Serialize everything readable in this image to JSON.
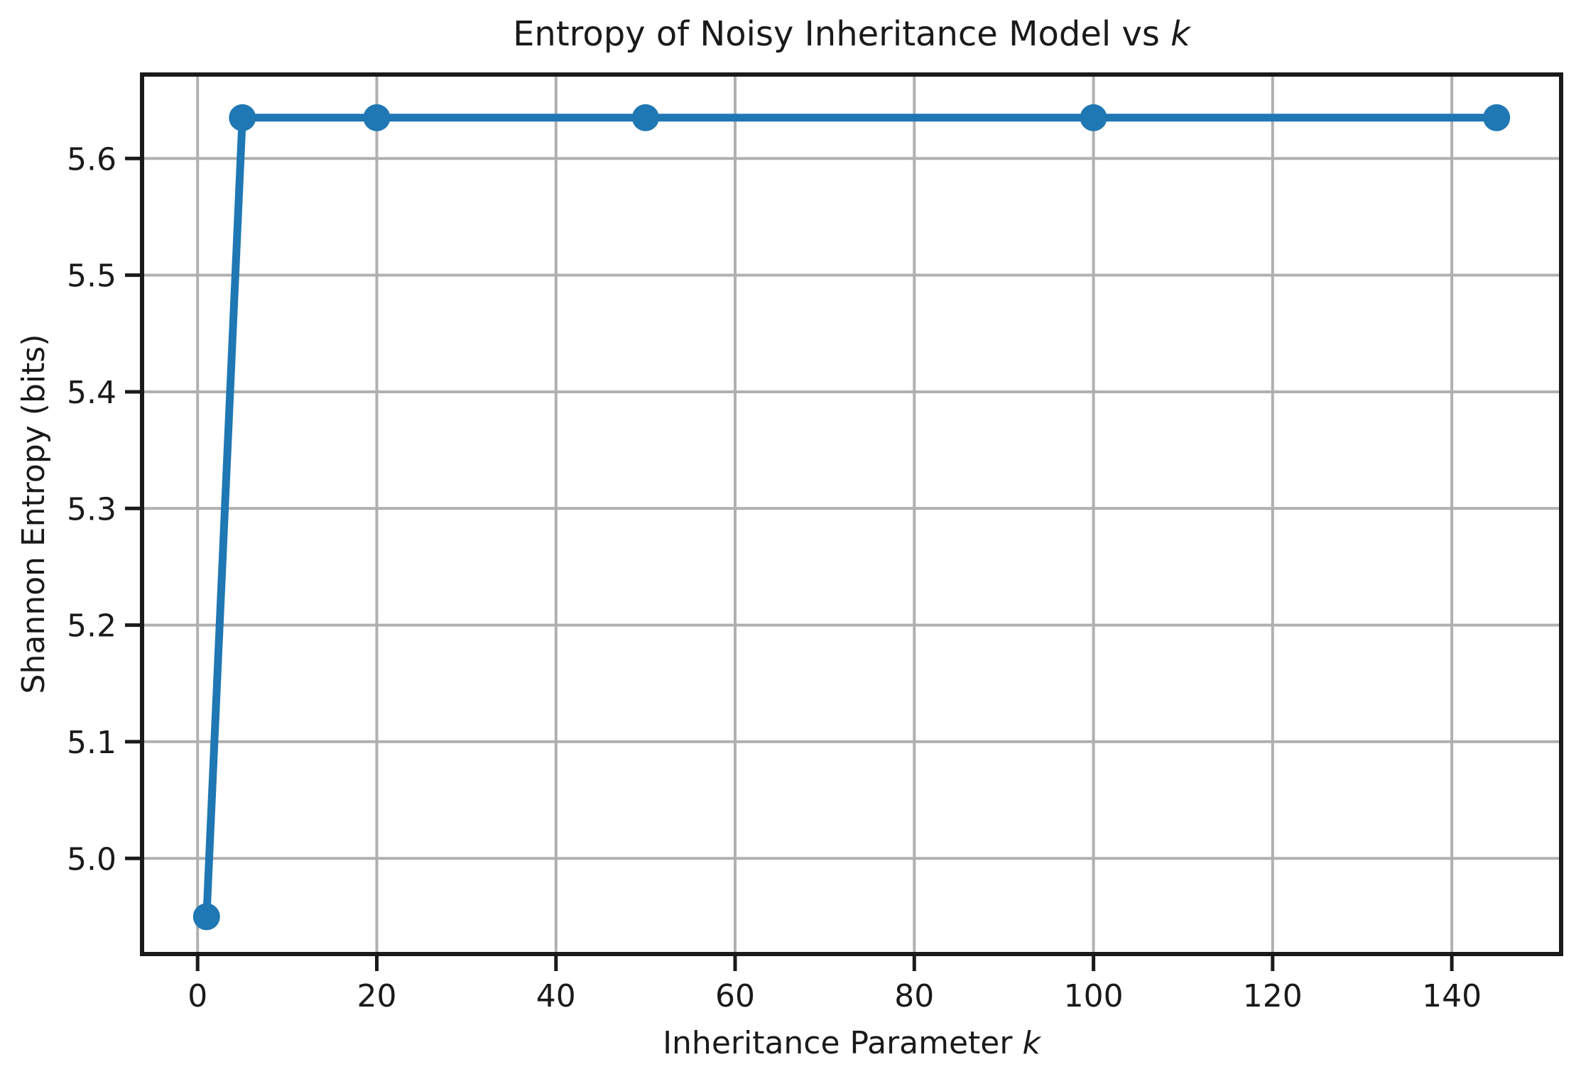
{
  "figure": {
    "title_main": "Entropy of Noisy Inheritance Model vs ",
    "title_math": "k",
    "xlabel_main": "Inheritance Parameter ",
    "xlabel_math": "k",
    "ylabel": "Shannon Entropy (bits)"
  },
  "chart_data": {
    "type": "line",
    "title": "Entropy of Noisy Inheritance Model vs k",
    "xlabel": "Inheritance Parameter k",
    "ylabel": "Shannon Entropy (bits)",
    "x": [
      1,
      5,
      20,
      50,
      100,
      145
    ],
    "y": [
      4.95,
      5.635,
      5.635,
      5.635,
      5.635,
      5.635
    ],
    "xlim": [
      -6.2,
      152.2
    ],
    "ylim": [
      4.918,
      5.672
    ],
    "xticks": [
      0,
      20,
      40,
      60,
      80,
      100,
      120,
      140
    ],
    "yticks": [
      5.0,
      5.1,
      5.2,
      5.3,
      5.4,
      5.5,
      5.6
    ],
    "grid": true,
    "legend_position": "none",
    "line_color": "#1f77b4",
    "marker": "o",
    "grid_color": "#b0b0b0",
    "axis_color": "#1a1a1a",
    "tick_label_color": "#1a1a1a"
  }
}
